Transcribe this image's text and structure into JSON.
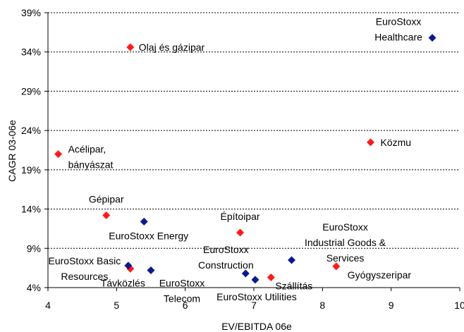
{
  "chart_data": {
    "type": "scatter",
    "title": "",
    "xlabel": "EV/EBITDA 06e",
    "ylabel": "CAGR 03-06e",
    "xlim": [
      4,
      10
    ],
    "ylim": [
      4,
      39
    ],
    "xticks": [
      "4",
      "5",
      "6",
      "7",
      "8",
      "9",
      "10"
    ],
    "yticks": [
      "4%",
      "9%",
      "14%",
      "19%",
      "24%",
      "29%",
      "34%",
      "39%"
    ],
    "grid": "horizontal dashed",
    "series": [
      {
        "color": "#ff1a1a",
        "marker": "diamond",
        "points": [
          {
            "label": "Olaj és gázipar",
            "x": 5.2,
            "y": 34.6
          },
          {
            "label": "Acélipar, bányászat",
            "x": 4.15,
            "y": 21.0
          },
          {
            "label": "Közmu",
            "x": 8.7,
            "y": 22.5
          },
          {
            "label": "Gépipar",
            "x": 4.85,
            "y": 13.2
          },
          {
            "label": "Építoipar",
            "x": 6.8,
            "y": 11.0
          },
          {
            "label": "Távközlés",
            "x": 5.2,
            "y": 6.4
          },
          {
            "label": "Szállítás",
            "x": 7.25,
            "y": 5.3
          },
          {
            "label": "Gyógyszeripar",
            "x": 8.2,
            "y": 6.7
          }
        ]
      },
      {
        "color": "#0a1a8c",
        "marker": "diamond",
        "points": [
          {
            "label": "EuroStoxx Healthcare",
            "x": 9.6,
            "y": 35.8
          },
          {
            "label": "EuroStoxx Energy",
            "x": 5.4,
            "y": 12.4
          },
          {
            "label": "EuroStoxx Basic Resources",
            "x": 5.17,
            "y": 6.8
          },
          {
            "label": "EuroStoxx Telecom",
            "x": 5.5,
            "y": 6.2
          },
          {
            "label": "EuroStoxx Construction",
            "x": 6.88,
            "y": 5.8
          },
          {
            "label": "EuroStoxx Utilities",
            "x": 7.02,
            "y": 5.0
          },
          {
            "label": "EuroStoxx Industrial Goods & Services",
            "x": 7.55,
            "y": 7.5
          }
        ]
      }
    ]
  }
}
